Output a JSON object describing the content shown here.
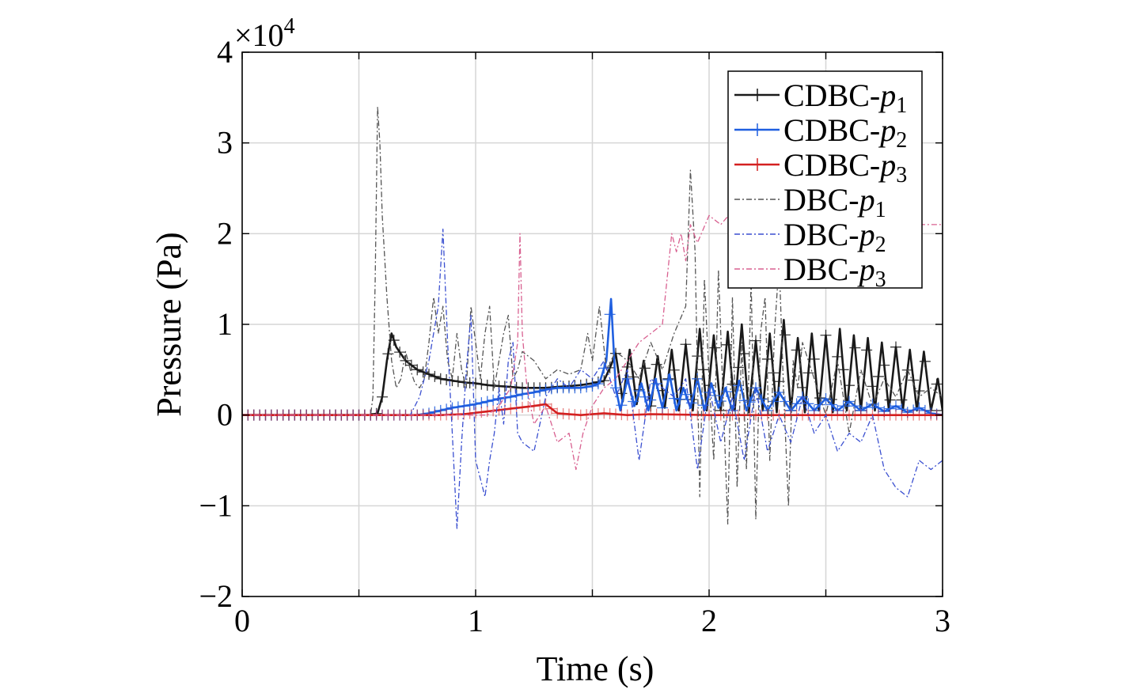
{
  "chart_data": {
    "type": "line",
    "xlabel": "Time (s)",
    "ylabel": "Pressure (Pa)",
    "y_multiplier": "×10",
    "y_multiplier_exp": "4",
    "xlim": [
      0,
      3
    ],
    "ylim": [
      -2,
      4
    ],
    "x_ticks": [
      "0",
      "1",
      "2",
      "3"
    ],
    "y_ticks": [
      "−2",
      "−1",
      "0",
      "1",
      "2",
      "3",
      "4"
    ],
    "grid": true,
    "legend_position": "top-right",
    "series": [
      {
        "name": "CDBC-p1",
        "legend_base": "CDBC-",
        "legend_var": "p",
        "legend_sub": "1",
        "color": "#1a1a1a",
        "style": "solid-plus",
        "x": [
          0,
          0.55,
          0.58,
          0.6,
          0.62,
          0.64,
          0.66,
          0.7,
          0.75,
          0.8,
          0.85,
          0.9,
          0.95,
          1.0,
          1.05,
          1.1,
          1.15,
          1.2,
          1.25,
          1.3,
          1.35,
          1.4,
          1.45,
          1.5,
          1.55,
          1.58,
          1.6,
          1.63,
          1.66,
          1.69,
          1.72,
          1.75,
          1.78,
          1.81,
          1.84,
          1.87,
          1.9,
          1.93,
          1.96,
          1.99,
          2.02,
          2.05,
          2.08,
          2.11,
          2.14,
          2.17,
          2.2,
          2.23,
          2.26,
          2.29,
          2.32,
          2.35,
          2.38,
          2.41,
          2.44,
          2.47,
          2.5,
          2.53,
          2.56,
          2.59,
          2.62,
          2.65,
          2.68,
          2.71,
          2.74,
          2.77,
          2.8,
          2.83,
          2.86,
          2.89,
          2.92,
          2.95,
          2.98,
          3.0
        ],
        "y": [
          0,
          0,
          0.02,
          0.2,
          0.6,
          0.9,
          0.75,
          0.6,
          0.5,
          0.45,
          0.4,
          0.38,
          0.36,
          0.35,
          0.33,
          0.32,
          0.31,
          0.3,
          0.3,
          0.3,
          0.31,
          0.32,
          0.33,
          0.35,
          0.38,
          0.55,
          0.68,
          0.15,
          0.72,
          0.12,
          0.6,
          0.1,
          0.65,
          0.08,
          0.72,
          0.05,
          0.78,
          0.05,
          0.95,
          0.05,
          0.88,
          0.05,
          0.92,
          0.05,
          1.0,
          0.03,
          0.82,
          0.05,
          0.9,
          0.03,
          1.05,
          0.05,
          0.85,
          0.03,
          0.9,
          0.05,
          0.88,
          0.03,
          0.95,
          0.05,
          0.88,
          0.05,
          0.85,
          0.05,
          0.8,
          0.05,
          0.75,
          0.05,
          0.72,
          0.05,
          0.7,
          0.05,
          0.4,
          0.05
        ]
      },
      {
        "name": "CDBC-p2",
        "legend_base": "CDBC-",
        "legend_var": "p",
        "legend_sub": "2",
        "color": "#1f5fe0",
        "style": "solid-plus",
        "x": [
          0,
          0.75,
          0.8,
          0.85,
          0.9,
          0.95,
          1.0,
          1.05,
          1.1,
          1.15,
          1.2,
          1.25,
          1.3,
          1.35,
          1.4,
          1.45,
          1.5,
          1.53,
          1.56,
          1.58,
          1.6,
          1.62,
          1.65,
          1.68,
          1.71,
          1.74,
          1.77,
          1.8,
          1.83,
          1.86,
          1.89,
          1.92,
          1.95,
          1.98,
          2.01,
          2.04,
          2.07,
          2.1,
          2.13,
          2.16,
          2.2,
          2.25,
          2.3,
          2.35,
          2.4,
          2.45,
          2.5,
          2.55,
          2.6,
          2.65,
          2.7,
          2.75,
          2.8,
          2.85,
          2.9,
          2.95,
          3.0
        ],
        "y": [
          0,
          0,
          0.02,
          0.05,
          0.08,
          0.1,
          0.12,
          0.15,
          0.18,
          0.2,
          0.23,
          0.25,
          0.28,
          0.3,
          0.3,
          0.3,
          0.32,
          0.35,
          0.6,
          1.28,
          0.3,
          0.05,
          0.4,
          0.1,
          0.35,
          0.05,
          0.4,
          0.08,
          0.45,
          0.05,
          0.3,
          0.08,
          0.4,
          0.05,
          0.35,
          0.08,
          0.3,
          0.05,
          0.38,
          0.05,
          0.3,
          0.05,
          0.25,
          0.05,
          0.2,
          0.05,
          0.18,
          0.05,
          0.15,
          0.05,
          0.12,
          0.04,
          0.1,
          0.03,
          0.08,
          0.02,
          0.0
        ]
      },
      {
        "name": "CDBC-p3",
        "legend_base": "CDBC-",
        "legend_var": "p",
        "legend_sub": "3",
        "color": "#d42020",
        "style": "solid-plus",
        "x": [
          0,
          0.85,
          0.95,
          1.05,
          1.15,
          1.25,
          1.3,
          1.32,
          1.35,
          1.45,
          1.55,
          1.65,
          1.75,
          2.0,
          2.25,
          2.5,
          2.75,
          3.0
        ],
        "y": [
          0,
          0,
          0.01,
          0.04,
          0.07,
          0.1,
          0.12,
          0.08,
          0.02,
          0.0,
          0.02,
          0.0,
          0.01,
          0.0,
          0.0,
          0.0,
          0.0,
          0.0
        ]
      },
      {
        "name": "DBC-p1",
        "legend_base": "DBC-",
        "legend_var": "p",
        "legend_sub": "1",
        "color": "#555555",
        "style": "dashdot",
        "x": [
          0,
          0.55,
          0.56,
          0.57,
          0.58,
          0.59,
          0.6,
          0.62,
          0.64,
          0.66,
          0.68,
          0.7,
          0.72,
          0.74,
          0.76,
          0.78,
          0.8,
          0.82,
          0.84,
          0.86,
          0.88,
          0.9,
          0.92,
          0.94,
          0.96,
          0.98,
          1.0,
          1.02,
          1.04,
          1.06,
          1.08,
          1.1,
          1.12,
          1.14,
          1.16,
          1.18,
          1.2,
          1.25,
          1.3,
          1.35,
          1.4,
          1.45,
          1.48,
          1.5,
          1.53,
          1.56,
          1.6,
          1.65,
          1.7,
          1.75,
          1.8,
          1.85,
          1.9,
          1.92,
          1.94,
          1.96,
          1.98,
          2.0,
          2.02,
          2.04,
          2.06,
          2.08,
          2.1,
          2.12,
          2.14,
          2.16,
          2.18,
          2.2,
          2.22,
          2.24,
          2.26,
          2.28,
          2.3,
          2.32,
          2.34,
          2.36,
          2.38,
          2.4,
          2.45,
          2.5,
          2.55,
          2.6,
          2.65,
          2.7,
          2.75,
          2.8,
          2.85,
          2.9,
          2.95,
          3.0
        ],
        "y": [
          0,
          0,
          0.2,
          1.5,
          3.4,
          3.0,
          2.2,
          1.3,
          0.6,
          0.3,
          0.4,
          0.7,
          0.5,
          0.35,
          0.3,
          0.4,
          0.8,
          1.3,
          0.9,
          1.2,
          0.6,
          0.4,
          0.9,
          0.5,
          0.3,
          1.2,
          0.8,
          0.4,
          0.9,
          1.2,
          0.3,
          0.6,
          0.9,
          1.1,
          0.4,
          0.5,
          0.7,
          0.6,
          0.4,
          0.5,
          0.45,
          0.5,
          0.9,
          0.6,
          1.2,
          0.5,
          0.7,
          0.6,
          0.4,
          0.8,
          0.5,
          0.9,
          1.2,
          2.7,
          1.8,
          -0.9,
          1.5,
          0.4,
          -0.5,
          1.6,
          0.2,
          -1.2,
          1.3,
          -0.8,
          0.8,
          -0.6,
          1.5,
          -1.15,
          0.9,
          1.3,
          -0.5,
          0.9,
          1.7,
          0.2,
          -1.0,
          0.6,
          0.3,
          0.8,
          0.4,
          0.0,
          0.6,
          -0.2,
          0.5,
          0.1,
          0.4,
          0.2,
          0.5,
          0.2,
          0.3,
          0.2
        ]
      },
      {
        "name": "DBC-p2",
        "legend_base": "DBC-",
        "legend_var": "p",
        "legend_sub": "2",
        "color": "#3a4fd0",
        "style": "dashdot",
        "x": [
          0,
          0.72,
          0.76,
          0.8,
          0.84,
          0.86,
          0.88,
          0.9,
          0.92,
          0.94,
          0.96,
          0.98,
          1.0,
          1.02,
          1.04,
          1.06,
          1.08,
          1.1,
          1.12,
          1.14,
          1.16,
          1.18,
          1.2,
          1.25,
          1.3,
          1.35,
          1.4,
          1.45,
          1.5,
          1.55,
          1.6,
          1.65,
          1.7,
          1.75,
          1.8,
          1.85,
          1.9,
          1.95,
          2.0,
          2.05,
          2.1,
          2.15,
          2.2,
          2.25,
          2.3,
          2.35,
          2.4,
          2.45,
          2.5,
          2.55,
          2.6,
          2.65,
          2.7,
          2.75,
          2.8,
          2.85,
          2.9,
          2.95,
          3.0
        ],
        "y": [
          0,
          0,
          0.2,
          0.6,
          1.2,
          2.05,
          0.8,
          -0.2,
          -1.25,
          -0.3,
          0.5,
          1.1,
          -0.5,
          -0.7,
          -0.9,
          -0.5,
          -0.2,
          0.3,
          -0.1,
          0.6,
          0.8,
          -0.2,
          -0.3,
          -0.4,
          0.2,
          0.4,
          0.3,
          0.5,
          0.4,
          0.6,
          0.2,
          0.5,
          -0.5,
          0.4,
          0.3,
          0.2,
          0.4,
          -0.6,
          0.3,
          -0.3,
          0.2,
          -0.5,
          0.3,
          -0.4,
          0.0,
          -0.3,
          0.2,
          -0.2,
          0.0,
          -0.4,
          -0.2,
          -0.3,
          0.0,
          -0.6,
          -0.8,
          -0.9,
          -0.5,
          -0.6,
          -0.5
        ]
      },
      {
        "name": "DBC-p3",
        "legend_base": "DBC-",
        "legend_var": "p",
        "legend_sub": "3",
        "color": "#d86090",
        "style": "dashdot",
        "x": [
          0,
          1.05,
          1.1,
          1.15,
          1.18,
          1.19,
          1.2,
          1.22,
          1.25,
          1.3,
          1.35,
          1.4,
          1.43,
          1.46,
          1.5,
          1.55,
          1.6,
          1.65,
          1.7,
          1.75,
          1.8,
          1.82,
          1.84,
          1.86,
          1.88,
          1.9,
          1.92,
          1.95,
          2.0,
          2.05,
          2.1,
          2.15,
          2.2,
          2.3,
          2.4,
          2.5,
          2.6,
          2.7,
          2.8,
          2.9,
          3.0
        ],
        "y": [
          0,
          0,
          0.1,
          0.3,
          0.8,
          2.0,
          0.9,
          0.3,
          -0.1,
          0.1,
          -0.3,
          -0.2,
          -0.6,
          -0.2,
          0.1,
          0.3,
          0.4,
          0.6,
          0.8,
          0.9,
          1.0,
          1.5,
          2.0,
          1.8,
          2.0,
          1.7,
          2.1,
          1.9,
          2.2,
          2.1,
          2.25,
          2.1,
          2.2,
          2.2,
          2.2,
          2.15,
          2.2,
          2.1,
          2.15,
          2.1,
          2.1
        ]
      }
    ]
  }
}
